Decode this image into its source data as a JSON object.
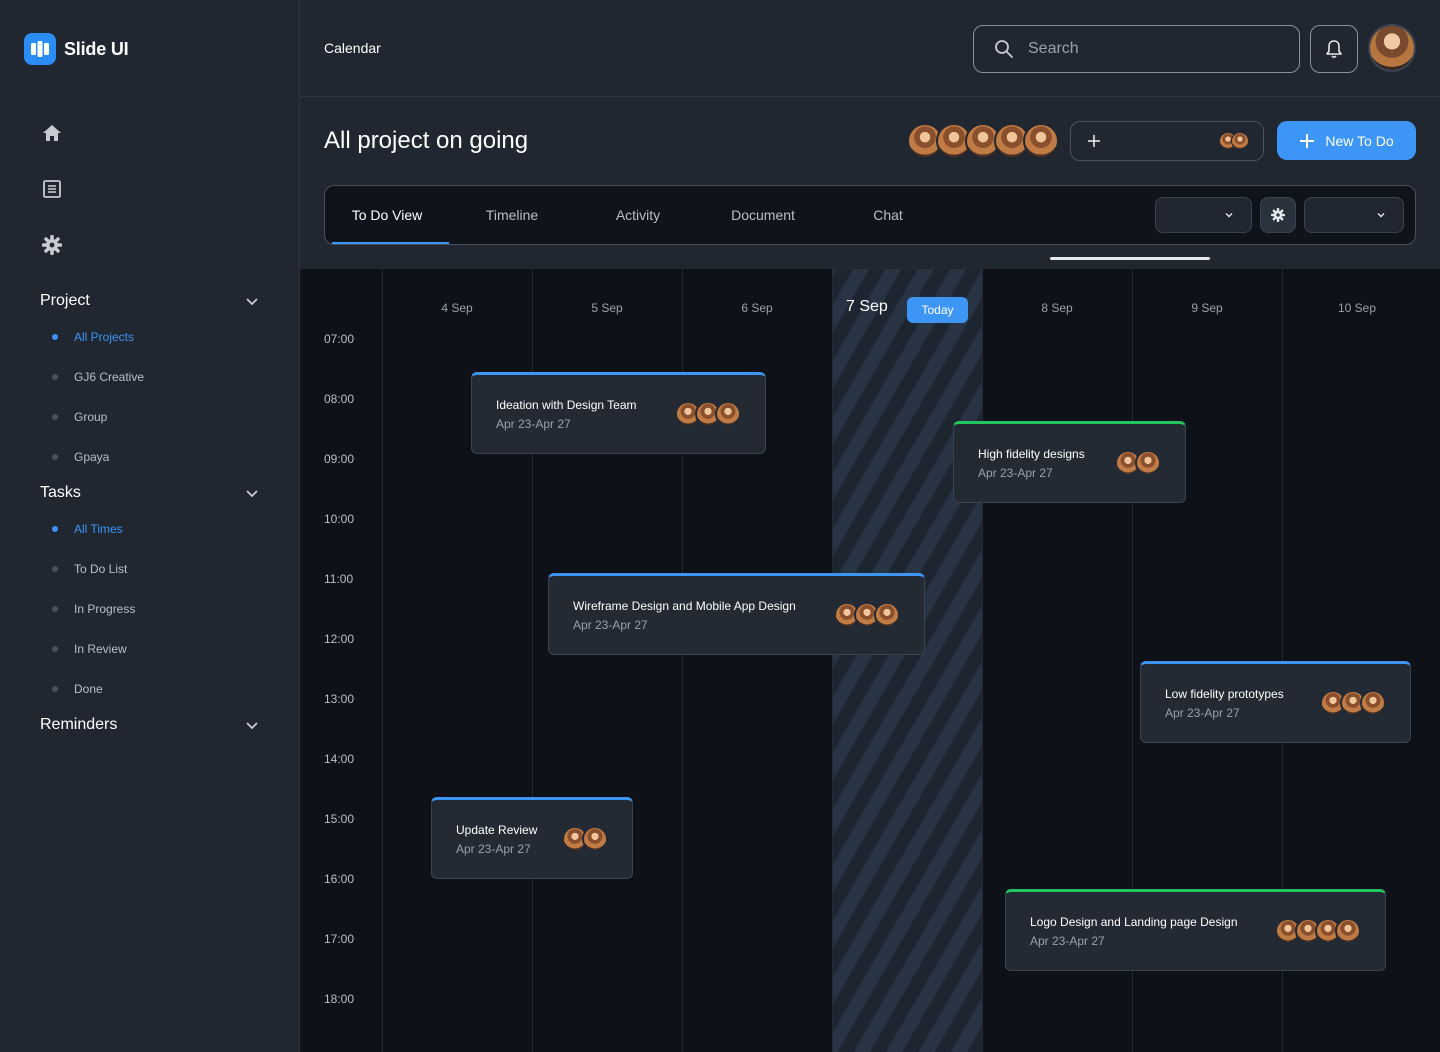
{
  "app": {
    "name": "Slide UI"
  },
  "sidebar": {
    "sections": [
      {
        "title": "Project",
        "items": [
          {
            "label": "All Projects",
            "active": true
          },
          {
            "label": "GJ6 Creative",
            "active": false
          },
          {
            "label": "Group",
            "active": false
          },
          {
            "label": "Gpaya",
            "active": false
          }
        ]
      },
      {
        "title": "Tasks",
        "items": [
          {
            "label": "All Times",
            "active": true
          },
          {
            "label": "To Do List",
            "active": false
          },
          {
            "label": "In Progress",
            "active": false
          },
          {
            "label": "In Review",
            "active": false
          },
          {
            "label": "Done",
            "active": false
          }
        ]
      },
      {
        "title": "Reminders",
        "items": []
      }
    ],
    "icons": [
      "home-icon",
      "list-icon",
      "gear-icon"
    ]
  },
  "topbar": {
    "title": "Calendar",
    "search_placeholder": "Search"
  },
  "project": {
    "title": "All project on going",
    "new_todo_label": "New To Do",
    "tabs": [
      "To Do View",
      "Timeline",
      "Activity",
      "Document",
      "Chat"
    ],
    "active_tab": "To Do View"
  },
  "calendar": {
    "days": [
      "4 Sep",
      "5 Sep",
      "6 Sep",
      "7 Sep",
      "8 Sep",
      "9 Sep",
      "10 Sep"
    ],
    "today_label": "Today",
    "times": [
      "07:00",
      "08:00",
      "09:00",
      "10:00",
      "11:00",
      "12:00",
      "13:00",
      "14:00",
      "15:00",
      "16:00",
      "17:00",
      "18:00"
    ],
    "events": [
      {
        "title": "Ideation with Design Team",
        "date": "Apr 23-Apr 27",
        "color": "#3d95f5",
        "avatars": 3
      },
      {
        "title": "High fidelity designs",
        "date": "Apr 23-Apr 27",
        "color": "#22c55e",
        "avatars": 2
      },
      {
        "title": "Wireframe Design and Mobile App Design",
        "date": "Apr 23-Apr 27",
        "color": "#3d95f5",
        "avatars": 3
      },
      {
        "title": "Low fidelity prototypes",
        "date": "Apr 23-Apr 27",
        "color": "#3d95f5",
        "avatars": 3
      },
      {
        "title": "Update Review",
        "date": "Apr 23-Apr 27",
        "color": "#3d95f5",
        "avatars": 2
      },
      {
        "title": "Logo Design and Landing page Design",
        "date": "Apr 23-Apr 27",
        "color": "#22c55e",
        "avatars": 4
      }
    ]
  },
  "colors": {
    "accent": "#3d95f5",
    "success": "#22c55e",
    "panel": "#202730",
    "canvas": "#0e1218"
  }
}
